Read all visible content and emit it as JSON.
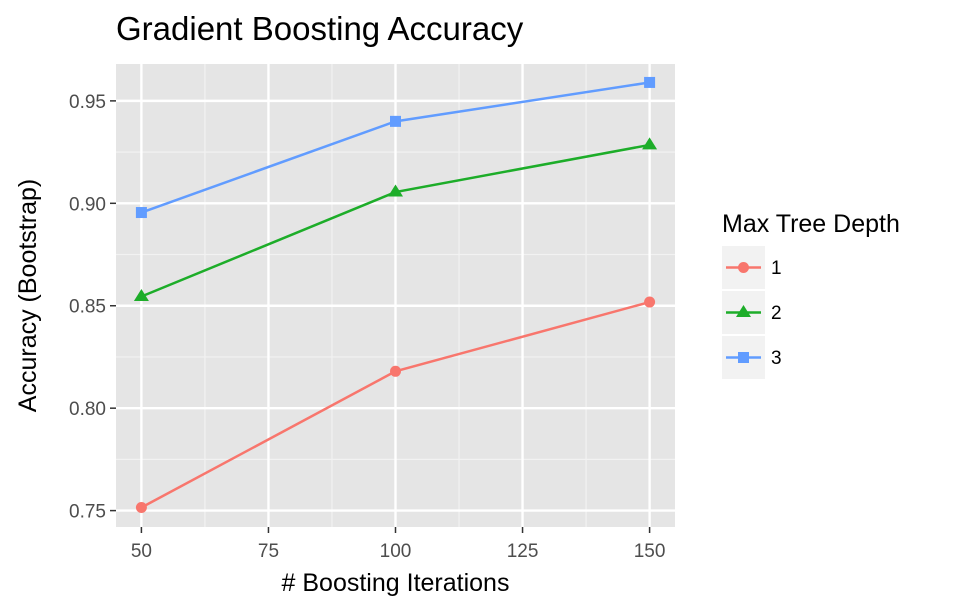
{
  "chart_data": {
    "type": "line",
    "title": "Gradient Boosting Accuracy",
    "xlabel": "# Boosting Iterations",
    "ylabel": "Accuracy (Bootstrap)",
    "x": [
      50,
      100,
      150
    ],
    "xlim": [
      45,
      155
    ],
    "ylim": [
      0.742,
      0.968
    ],
    "xticks": [
      50,
      75,
      100,
      125,
      150
    ],
    "yticks": [
      0.75,
      0.8,
      0.85,
      0.9,
      0.95
    ],
    "ytick_labels": [
      "0.75",
      "0.80",
      "0.85",
      "0.90",
      "0.95"
    ],
    "grid": true,
    "legend": {
      "title": "Max Tree Depth",
      "position": "right"
    },
    "series": [
      {
        "name": "1",
        "values": [
          0.7515,
          0.818,
          0.8518
        ],
        "color": "#F8766D",
        "marker": "circle"
      },
      {
        "name": "2",
        "values": [
          0.8545,
          0.9055,
          0.9285
        ],
        "color": "#1DAD29",
        "marker": "triangle"
      },
      {
        "name": "3",
        "values": [
          0.8955,
          0.94,
          0.959
        ],
        "color": "#619CFF",
        "marker": "square"
      }
    ]
  }
}
